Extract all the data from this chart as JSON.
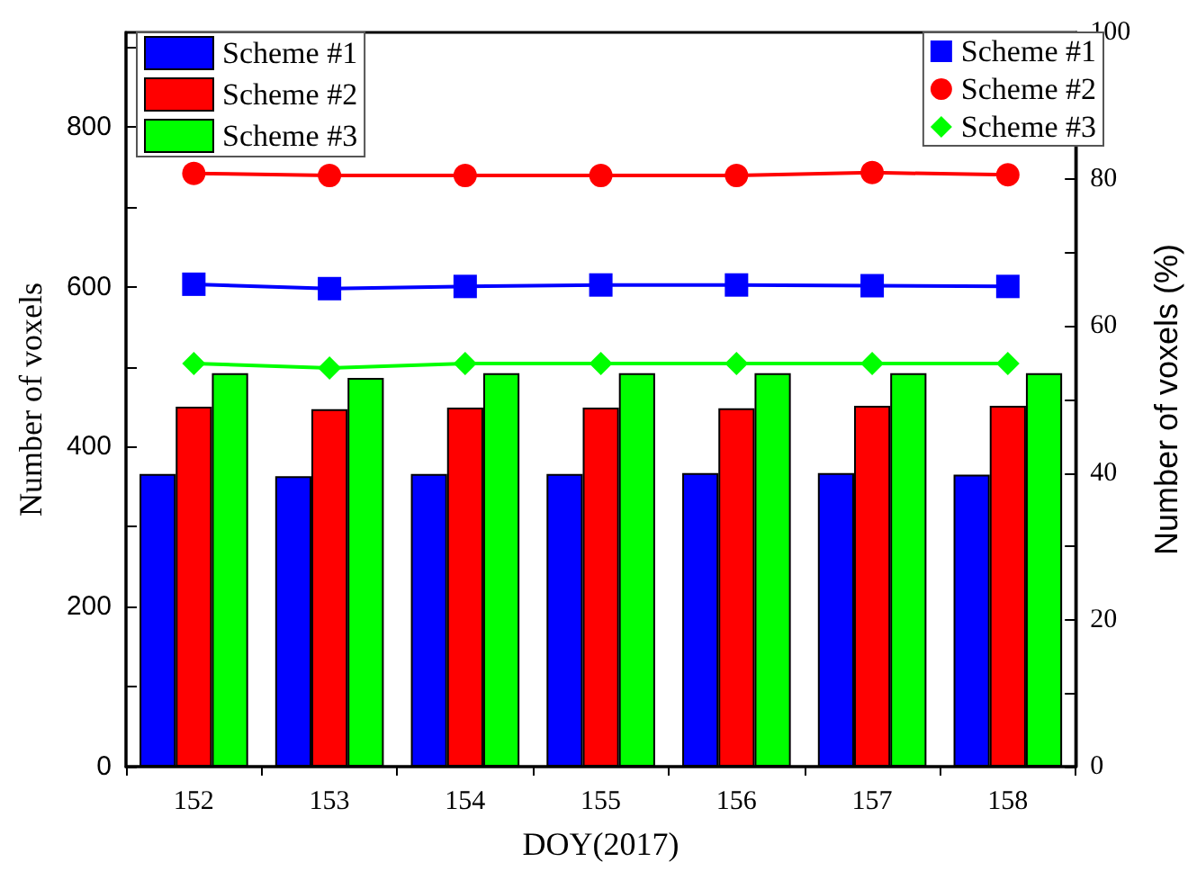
{
  "chart_data": {
    "type": "bar",
    "xlabel": "DOY(2017)",
    "ylabel": "Number of voxels",
    "y2label": "Number of voxels (%)",
    "categories": [
      "152",
      "153",
      "154",
      "155",
      "156",
      "157",
      "158"
    ],
    "series": [
      {
        "name": "Scheme #1",
        "color": "#0000ff",
        "values": [
          366,
          363,
          366,
          366,
          367,
          367,
          365
        ]
      },
      {
        "name": "Scheme #2",
        "color": "#ff0000",
        "values": [
          450,
          447,
          449,
          449,
          448,
          451,
          451
        ]
      },
      {
        "name": "Scheme #3",
        "color": "#00ff00",
        "values": [
          492,
          486,
          492,
          492,
          492,
          492,
          492
        ]
      },
      {
        "name": "Scheme #1",
        "type": "line",
        "axis": "y2",
        "marker": "square",
        "color": "#0000ff",
        "values": [
          65.7,
          65.1,
          65.4,
          65.6,
          65.6,
          65.5,
          65.4
        ]
      },
      {
        "name": "Scheme #2",
        "type": "line",
        "axis": "y2",
        "marker": "circle",
        "color": "#ff0000",
        "values": [
          80.8,
          80.5,
          80.5,
          80.5,
          80.5,
          80.9,
          80.6
        ]
      },
      {
        "name": "Scheme #3",
        "type": "line",
        "axis": "y2",
        "marker": "diamond",
        "color": "#00ff00",
        "values": [
          54.9,
          54.3,
          54.9,
          54.9,
          54.9,
          54.9,
          54.9
        ]
      }
    ],
    "ylim": [
      0,
      918
    ],
    "yticks": [
      0,
      {
        "value": 100,
        "label": null
      },
      200,
      {
        "value": 300,
        "label": null
      },
      400,
      {
        "value": 500,
        "label": null
      },
      600,
      {
        "value": 700,
        "label": null
      },
      800,
      {
        "value": 900,
        "label": null
      }
    ],
    "y2lim": [
      0,
      100
    ],
    "y2ticks": [
      0,
      {
        "value": 10,
        "label": null
      },
      20,
      {
        "value": 30,
        "label": null
      },
      40,
      {
        "value": 50,
        "label": null
      },
      60,
      {
        "value": 70,
        "label": null
      },
      80,
      {
        "value": 90,
        "label": null
      },
      100
    ],
    "legend": "top",
    "grid": false
  }
}
